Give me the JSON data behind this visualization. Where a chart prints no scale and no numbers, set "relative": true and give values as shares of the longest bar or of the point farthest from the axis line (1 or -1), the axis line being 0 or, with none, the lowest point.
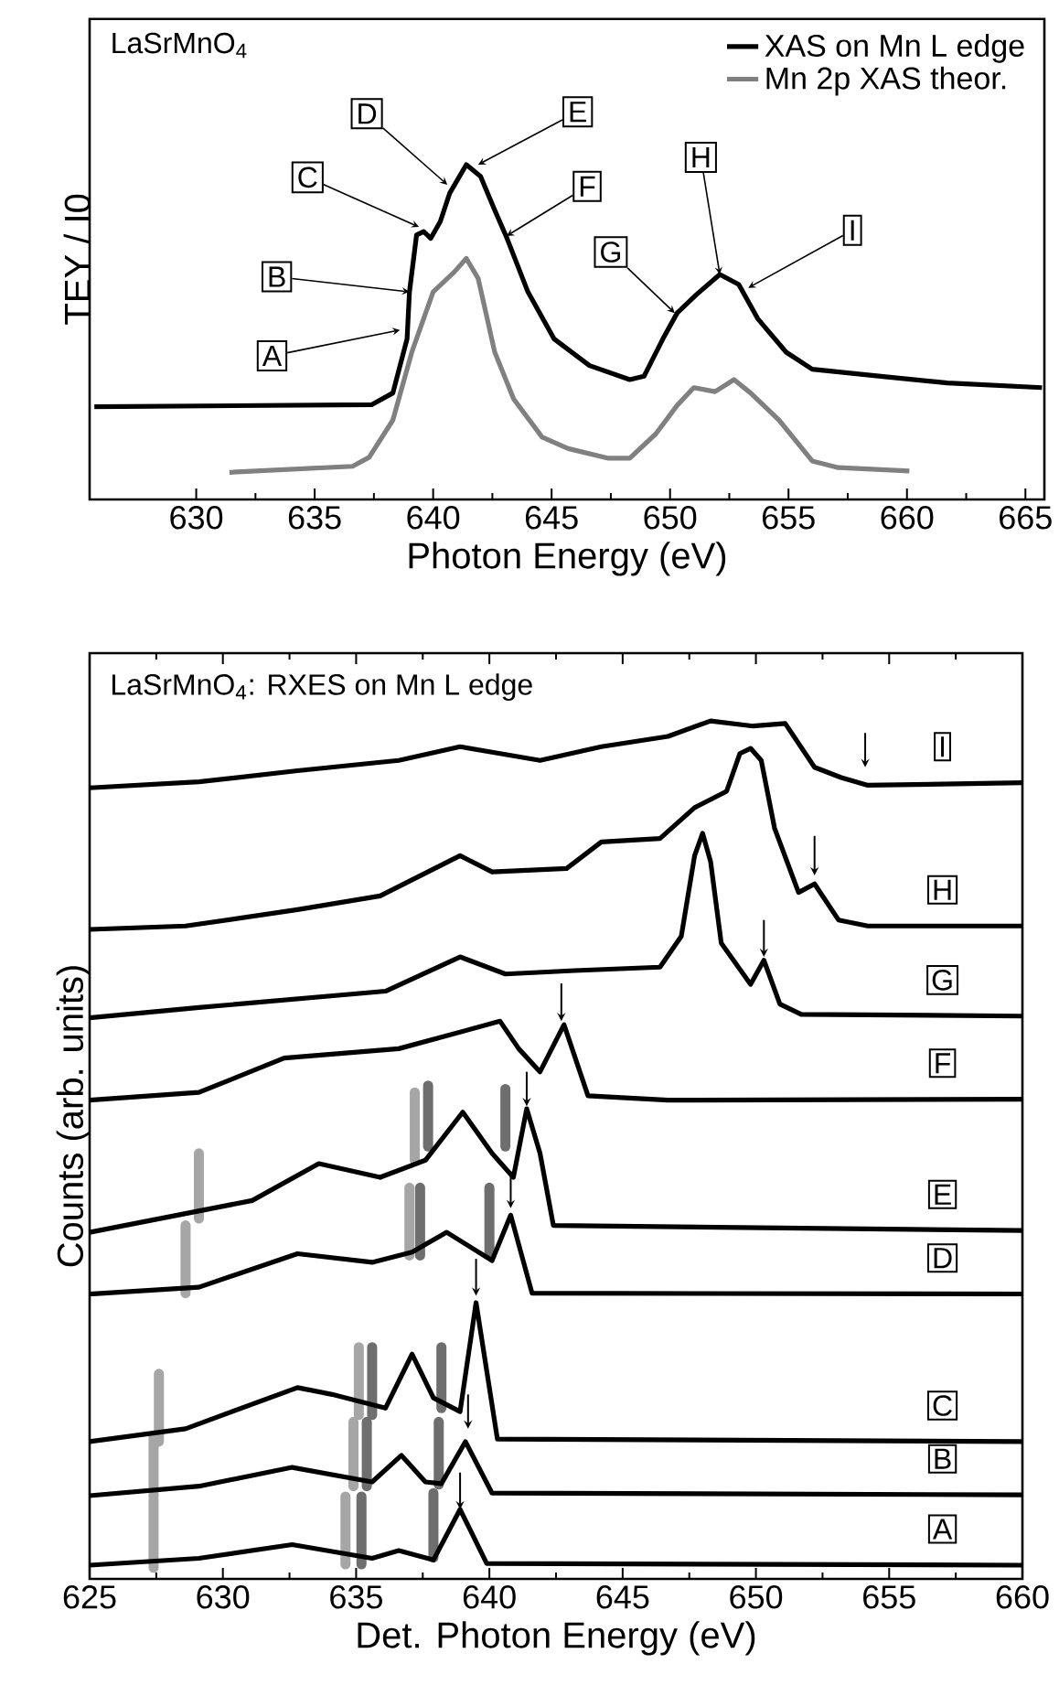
{
  "chart_data": [
    {
      "type": "line",
      "relative": true,
      "xlabel": "Photon Energy (eV)",
      "ylabel": "TEY / I0",
      "xlim": [
        625.5,
        665.8
      ],
      "xticks": [
        630,
        635,
        640,
        645,
        650,
        655,
        660,
        665
      ],
      "legend": "top right",
      "annotations": [
        "LaSrMnO$_{4}$",
        {
          "text": "A",
          "x": 638.6,
          "y": 0.506
        },
        {
          "text": "B",
          "x": 639.0,
          "y": 0.62
        },
        {
          "text": "C",
          "x": 639.4,
          "y": 0.814
        },
        {
          "text": "D",
          "x": 640.6,
          "y": 0.94
        },
        {
          "text": "E",
          "x": 641.9,
          "y": 1.0
        },
        {
          "text": "F",
          "x": 643.1,
          "y": 0.787
        },
        {
          "text": "G",
          "x": 650.2,
          "y": 0.557
        },
        {
          "text": "H",
          "x": 652.1,
          "y": 0.672
        },
        {
          "text": "I",
          "x": 653.3,
          "y": 0.632
        }
      ],
      "series": [
        {
          "name": "XAS on Mn L edge",
          "color": "#000000",
          "x": [
            625.7,
            637.4,
            638.3,
            638.9,
            639.0,
            639.3,
            639.6,
            639.9,
            640.3,
            640.7,
            641.4,
            642.0,
            642.6,
            643.1,
            644.0,
            645.1,
            646.6,
            648.3,
            648.9,
            649.7,
            650.3,
            651.1,
            652.1,
            652.9,
            653.7,
            654.9,
            656.0,
            658.9,
            661.7,
            665.7
          ],
          "values": [
            0.277,
            0.283,
            0.318,
            0.48,
            0.62,
            0.79,
            0.8,
            0.78,
            0.83,
            0.915,
            1.0,
            0.965,
            0.864,
            0.783,
            0.62,
            0.48,
            0.4,
            0.358,
            0.368,
            0.48,
            0.557,
            0.611,
            0.672,
            0.642,
            0.54,
            0.44,
            0.389,
            0.368,
            0.348,
            0.334
          ]
        },
        {
          "name": "Mn 2p XAS theor.",
          "color": "#808080",
          "x": [
            631.4,
            636.6,
            637.3,
            638.3,
            639.1,
            640.0,
            640.9,
            641.4,
            641.9,
            642.6,
            643.4,
            644.6,
            645.7,
            647.4,
            648.3,
            649.4,
            650.3,
            651.0,
            651.9,
            652.7,
            653.4,
            654.6,
            656.0,
            657.1,
            660.1
          ],
          "values": [
            0.081,
            0.099,
            0.126,
            0.237,
            0.44,
            0.62,
            0.68,
            0.72,
            0.66,
            0.44,
            0.3,
            0.186,
            0.152,
            0.123,
            0.123,
            0.196,
            0.281,
            0.334,
            0.322,
            0.358,
            0.318,
            0.237,
            0.115,
            0.095,
            0.085
          ]
        }
      ]
    },
    {
      "type": "line",
      "relative": true,
      "xlabel": "Det. Photon Energy (eV)",
      "ylabel": "Counts (arb. units)",
      "xlim": [
        625,
        660
      ],
      "xticks": [
        625,
        630,
        635,
        640,
        645,
        650,
        655,
        660
      ],
      "annotations": [
        "LaSrMnO$_{4}$: RXES on Mn L edge"
      ],
      "series": [
        {
          "name": "A",
          "color": "#000000",
          "x": [
            625,
            629.1,
            632.6,
            635.6,
            636.6,
            637.9,
            638.9,
            639.9,
            660
          ],
          "values": [
            0.016,
            0.024,
            0.04,
            0.024,
            0.033,
            0.022,
            0.081,
            0.018,
            0.016
          ]
        },
        {
          "name": "B",
          "color": "#000000",
          "x": [
            625,
            629.1,
            632.6,
            635.6,
            636.7,
            637.6,
            638.2,
            639.1,
            640.1,
            660
          ],
          "values": [
            0.097,
            0.108,
            0.13,
            0.113,
            0.144,
            0.113,
            0.111,
            0.16,
            0.1,
            0.098
          ]
        },
        {
          "name": "C",
          "color": "#000000",
          "x": [
            625,
            628.6,
            632.8,
            634.1,
            636.1,
            637.1,
            637.9,
            638.9,
            639.5,
            640.3,
            660
          ],
          "values": [
            0.16,
            0.175,
            0.223,
            0.215,
            0.199,
            0.262,
            0.211,
            0.195,
            0.322,
            0.163,
            0.16
          ]
        },
        {
          "name": "D",
          "color": "#000000",
          "x": [
            625,
            629.1,
            632.8,
            635.6,
            637.1,
            638.4,
            640.1,
            640.8,
            641.6,
            660
          ],
          "values": [
            0.332,
            0.34,
            0.379,
            0.369,
            0.381,
            0.404,
            0.371,
            0.424,
            0.333,
            0.332
          ]
        },
        {
          "name": "E",
          "color": "#000000",
          "x": [
            625,
            631.1,
            633.6,
            635.9,
            637.6,
            639.0,
            640.1,
            640.9,
            641.4,
            641.9,
            642.4,
            660
          ],
          "values": [
            0.404,
            0.441,
            0.484,
            0.468,
            0.488,
            0.544,
            0.496,
            0.468,
            0.548,
            0.496,
            0.412,
            0.406
          ]
        },
        {
          "name": "F",
          "color": "#000000",
          "x": [
            625,
            629.1,
            632.3,
            636.6,
            640.4,
            641.1,
            641.9,
            642.8,
            643.7,
            646.7,
            660
          ],
          "values": [
            0.558,
            0.567,
            0.607,
            0.618,
            0.65,
            0.618,
            0.591,
            0.646,
            0.563,
            0.558,
            0.559
          ]
        },
        {
          "name": "G",
          "color": "#000000",
          "x": [
            625,
            629.1,
            636.1,
            638.9,
            640.6,
            643.2,
            646.4,
            647.2,
            647.7,
            648.0,
            648.3,
            648.7,
            649.8,
            650.3,
            650.9,
            651.7,
            660
          ],
          "values": [
            0.654,
            0.666,
            0.685,
            0.725,
            0.705,
            0.709,
            0.713,
            0.749,
            0.843,
            0.869,
            0.836,
            0.741,
            0.693,
            0.721,
            0.67,
            0.658,
            0.656
          ]
        },
        {
          "name": "H",
          "color": "#000000",
          "x": [
            625,
            628.6,
            632.8,
            635.9,
            638.9,
            640.1,
            642.9,
            644.2,
            646.4,
            647.7,
            648.9,
            649.4,
            649.8,
            650.2,
            650.7,
            651.6,
            652.2,
            653.1,
            654.2,
            660
          ],
          "values": [
            0.757,
            0.761,
            0.78,
            0.796,
            0.843,
            0.824,
            0.828,
            0.859,
            0.863,
            0.899,
            0.918,
            0.962,
            0.968,
            0.954,
            0.875,
            0.8,
            0.81,
            0.768,
            0.761,
            0.761
          ]
        },
        {
          "name": "I",
          "color": "#000000",
          "x": [
            625,
            629.1,
            632.8,
            636.6,
            638.9,
            640.4,
            641.9,
            644.2,
            646.7,
            648.3,
            649.9,
            651.1,
            652.2,
            653.2,
            654.2,
            660
          ],
          "values": [
            0.922,
            0.929,
            0.942,
            0.954,
            0.97,
            0.962,
            0.954,
            0.97,
            0.982,
            1.0,
            0.994,
            0.997,
            0.946,
            0.934,
            0.925,
            0.928
          ]
        }
      ]
    }
  ]
}
